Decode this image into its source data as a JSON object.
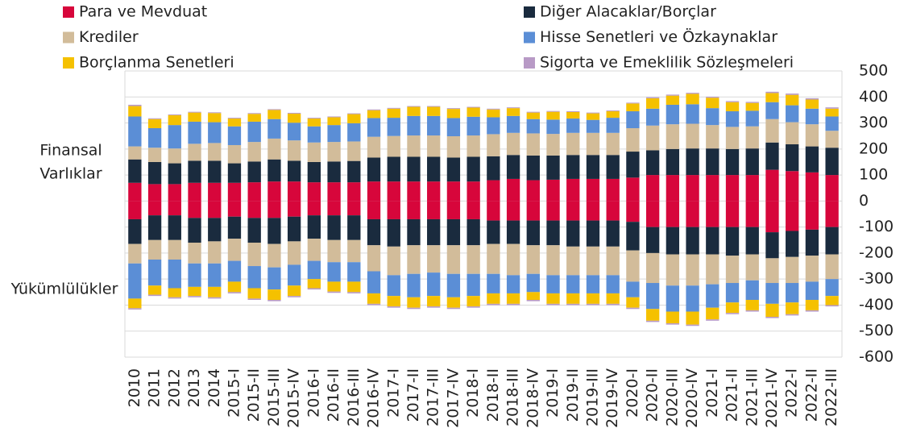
{
  "chart_data": {
    "type": "bar",
    "stacked": true,
    "categories": [
      "2010",
      "2011",
      "2012",
      "2013",
      "2014",
      "2015-I",
      "2015-II",
      "2015-III",
      "2015-IV",
      "2016-I",
      "2016-II",
      "2016-III",
      "2016-IV",
      "2017-I",
      "2017-II",
      "2017-III",
      "2017-IV",
      "2018-I",
      "2018-II",
      "2018-III",
      "2018-IV",
      "2019-I",
      "2019-II",
      "2019-III",
      "2019-IV",
      "2020-I",
      "2020-II",
      "2020-III",
      "2020-IV",
      "2021-I",
      "2021-II",
      "2021-III",
      "2021-IV",
      "2022-I",
      "2022-II",
      "2022-III"
    ],
    "series": [
      {
        "name": "Para ve Mevduat",
        "color": "#d7063b",
        "values": [
          70,
          65,
          65,
          70,
          70,
          70,
          72,
          75,
          75,
          72,
          72,
          72,
          75,
          75,
          75,
          75,
          75,
          75,
          80,
          85,
          80,
          82,
          85,
          85,
          85,
          90,
          100,
          100,
          100,
          100,
          100,
          100,
          120,
          115,
          110,
          100
        ],
        "liability_values": [
          -70,
          -55,
          -55,
          -65,
          -65,
          -60,
          -65,
          -65,
          -60,
          -55,
          -55,
          -55,
          -70,
          -70,
          -70,
          -70,
          -70,
          -70,
          -75,
          -75,
          -75,
          -75,
          -75,
          -75,
          -75,
          -80,
          -100,
          -100,
          -100,
          -100,
          -100,
          -100,
          -120,
          -115,
          -110,
          -100
        ]
      },
      {
        "name": "Diğer Alacaklar/Borçlar",
        "color": "#1a2b3e",
        "values": [
          90,
          85,
          80,
          85,
          85,
          75,
          80,
          85,
          80,
          78,
          80,
          82,
          92,
          95,
          95,
          95,
          92,
          95,
          92,
          92,
          95,
          93,
          92,
          92,
          92,
          100,
          95,
          100,
          102,
          102,
          100,
          102,
          105,
          103,
          100,
          105
        ],
        "liability_values": [
          -95,
          -95,
          -95,
          -95,
          -90,
          -85,
          -95,
          -100,
          -95,
          -90,
          -95,
          -95,
          -100,
          -105,
          -100,
          -100,
          -100,
          -100,
          -90,
          -90,
          -95,
          -95,
          -100,
          -100,
          -100,
          -110,
          -100,
          -105,
          -105,
          -105,
          -110,
          -105,
          -100,
          -100,
          -100,
          -105
        ]
      },
      {
        "name": "Krediler",
        "color": "#d2bc9a",
        "values": [
          50,
          55,
          57,
          65,
          68,
          70,
          75,
          80,
          78,
          75,
          75,
          75,
          80,
          80,
          82,
          82,
          82,
          82,
          85,
          85,
          85,
          83,
          85,
          85,
          85,
          90,
          95,
          95,
          95,
          90,
          85,
          85,
          90,
          85,
          85,
          65
        ],
        "liability_values": [
          -75,
          -75,
          -75,
          -80,
          -85,
          -85,
          -90,
          -90,
          -90,
          -85,
          -85,
          -85,
          -100,
          -110,
          -110,
          -105,
          -110,
          -110,
          -115,
          -120,
          -110,
          -115,
          -110,
          -110,
          -110,
          -120,
          -115,
          -120,
          -120,
          -115,
          -105,
          -100,
          -95,
          -100,
          -100,
          -95
        ]
      },
      {
        "name": "Hisse Senetleri ve Özkaynaklar",
        "color": "#5b8ed6",
        "values": [
          115,
          75,
          90,
          85,
          80,
          72,
          78,
          75,
          68,
          62,
          65,
          70,
          72,
          70,
          75,
          75,
          70,
          72,
          65,
          65,
          55,
          55,
          55,
          50,
          58,
          65,
          65,
          75,
          75,
          65,
          60,
          60,
          65,
          65,
          60,
          55
        ],
        "liability_values": [
          -135,
          -100,
          -110,
          -90,
          -90,
          -80,
          -85,
          -85,
          -80,
          -70,
          -75,
          -75,
          -85,
          -80,
          -90,
          -90,
          -90,
          -85,
          -75,
          -70,
          -70,
          -70,
          -70,
          -70,
          -70,
          -60,
          -100,
          -100,
          -100,
          -90,
          -75,
          -75,
          -80,
          -75,
          -70,
          -65
        ]
      },
      {
        "name": "Borçlanma Senetleri",
        "color": "#f5c100",
        "values": [
          40,
          35,
          38,
          35,
          35,
          30,
          30,
          35,
          35,
          30,
          30,
          35,
          30,
          35,
          35,
          35,
          35,
          35,
          30,
          30,
          25,
          30,
          25,
          25,
          25,
          30,
          40,
          35,
          40,
          40,
          35,
          30,
          35,
          40,
          35,
          30
        ],
        "liability_values": [
          -37,
          -35,
          -35,
          -35,
          -40,
          -40,
          -40,
          -40,
          -40,
          -35,
          -38,
          -40,
          -40,
          -40,
          -40,
          -40,
          -40,
          -40,
          -40,
          -40,
          -30,
          -40,
          -40,
          -40,
          -40,
          -40,
          -45,
          -45,
          -50,
          -45,
          -40,
          -40,
          -50,
          -45,
          -40,
          -35
        ]
      },
      {
        "name": "Sigorta ve Emeklilik Sözleşmeleri",
        "color": "#b89ac6",
        "values": [
          5,
          3,
          3,
          3,
          3,
          3,
          3,
          3,
          3,
          3,
          3,
          3,
          3,
          3,
          3,
          3,
          3,
          3,
          3,
          3,
          3,
          3,
          3,
          3,
          3,
          3,
          4,
          4,
          4,
          4,
          4,
          4,
          5,
          5,
          5,
          5
        ],
        "liability_values": [
          -5,
          -5,
          -5,
          -5,
          -5,
          -5,
          -5,
          -5,
          -5,
          -5,
          -5,
          -5,
          -5,
          -5,
          -5,
          -5,
          -5,
          -5,
          -5,
          -5,
          -5,
          -5,
          -5,
          -5,
          -5,
          -5,
          -5,
          -5,
          -5,
          -5,
          -5,
          -5,
          -5,
          -5,
          -5,
          -5
        ]
      }
    ],
    "asset_label": [
      "Finansal",
      "Varlıklar"
    ],
    "liability_label": "Yükümlülükler",
    "ylim": [
      -600,
      500
    ],
    "yticks": [
      -600,
      -500,
      -400,
      -300,
      -200,
      -100,
      0,
      100,
      200,
      300,
      400,
      500
    ],
    "grid": true
  }
}
